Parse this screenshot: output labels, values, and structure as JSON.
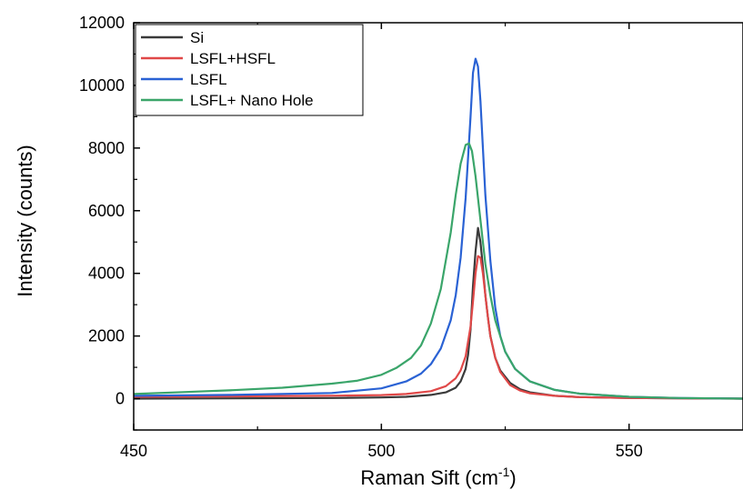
{
  "chart_data": {
    "type": "line",
    "title": "",
    "xlabel": "Raman Sift (cm",
    "xlabel_sup": "-1",
    "xlabel_close": ")",
    "ylabel": "Intensity (counts)",
    "xlim": [
      450,
      573
    ],
    "ylim": [
      -1000,
      12000
    ],
    "xticks": [
      450,
      500,
      550
    ],
    "yticks": [
      0,
      2000,
      4000,
      6000,
      8000,
      10000,
      12000
    ],
    "legend_position": "top-left",
    "grid": false,
    "series": [
      {
        "name": "Si",
        "color": "#3a3a3a",
        "x": [
          450,
          470,
          490,
          500,
          505,
          510,
          513,
          515,
          516,
          517,
          517.5,
          518,
          518.5,
          519,
          519.5,
          520,
          520.5,
          521,
          521.5,
          522,
          523,
          524,
          526,
          528,
          530,
          535,
          540,
          550,
          560,
          573
        ],
        "y": [
          0,
          10,
          20,
          40,
          60,
          120,
          200,
          350,
          550,
          950,
          1400,
          2200,
          3600,
          4700,
          5450,
          5000,
          4200,
          3300,
          2600,
          2000,
          1300,
          900,
          500,
          300,
          200,
          90,
          50,
          20,
          10,
          0
        ]
      },
      {
        "name": "LSFL+HSFL",
        "color": "#e04848",
        "x": [
          450,
          470,
          490,
          500,
          505,
          510,
          513,
          515,
          516,
          517,
          518,
          518.5,
          519,
          519.5,
          520,
          520.5,
          521,
          521.5,
          522,
          523,
          524,
          526,
          528,
          530,
          535,
          540,
          550,
          560,
          573
        ],
        "y": [
          60,
          75,
          95,
          115,
          150,
          240,
          400,
          650,
          900,
          1350,
          2300,
          3100,
          4000,
          4550,
          4500,
          4000,
          3300,
          2600,
          2000,
          1300,
          850,
          430,
          260,
          170,
          90,
          50,
          20,
          10,
          0
        ]
      },
      {
        "name": "LSFL",
        "color": "#2a62d4",
        "x": [
          450,
          470,
          490,
          500,
          505,
          508,
          510,
          512,
          514,
          515,
          516,
          517,
          518,
          518.5,
          519,
          519.5,
          520,
          520.5,
          521,
          522,
          523,
          524,
          525,
          527,
          530,
          535,
          540,
          550,
          560,
          573
        ],
        "y": [
          90,
          120,
          180,
          330,
          550,
          800,
          1100,
          1600,
          2500,
          3300,
          4500,
          6400,
          9000,
          10400,
          10850,
          10600,
          9500,
          8000,
          6500,
          4400,
          2900,
          2000,
          1500,
          950,
          550,
          280,
          160,
          60,
          20,
          0
        ]
      },
      {
        "name": "LSFL+ Nano Hole",
        "color": "#3aa56a",
        "x": [
          450,
          460,
          470,
          480,
          490,
          495,
          500,
          503,
          506,
          508,
          510,
          512,
          514,
          515,
          516,
          517,
          517.7,
          518.3,
          519,
          520,
          521,
          522,
          523,
          525,
          527,
          530,
          535,
          540,
          550,
          560,
          573
        ],
        "y": [
          150,
          210,
          270,
          350,
          480,
          570,
          760,
          980,
          1300,
          1700,
          2400,
          3500,
          5300,
          6500,
          7500,
          8100,
          8150,
          7900,
          7100,
          5700,
          4300,
          3300,
          2500,
          1500,
          950,
          550,
          280,
          160,
          60,
          20,
          0
        ]
      }
    ]
  }
}
